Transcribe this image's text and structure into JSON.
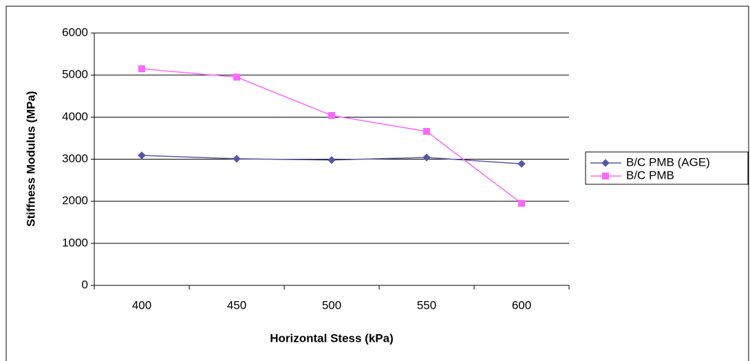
{
  "chart_data": {
    "type": "line",
    "x_label": "Horizontal Stess (kPa)",
    "y_label": "Stiffness Modulus (MPa)",
    "categories": [
      "400",
      "450",
      "500",
      "550",
      "600"
    ],
    "series": [
      {
        "name": "B/C PMB (AGE)",
        "color": "#5656a8",
        "marker": "diamond",
        "values": [
          3090,
          3010,
          2980,
          3040,
          2890
        ]
      },
      {
        "name": "B/C PMB",
        "color": "#ff66ff",
        "marker": "square",
        "values": [
          5150,
          4950,
          4040,
          3660,
          1950
        ]
      }
    ],
    "ylim": [
      0,
      6000
    ],
    "yticks": [
      0,
      1000,
      2000,
      3000,
      4000,
      5000,
      6000
    ],
    "grid": true,
    "legend": "right"
  }
}
